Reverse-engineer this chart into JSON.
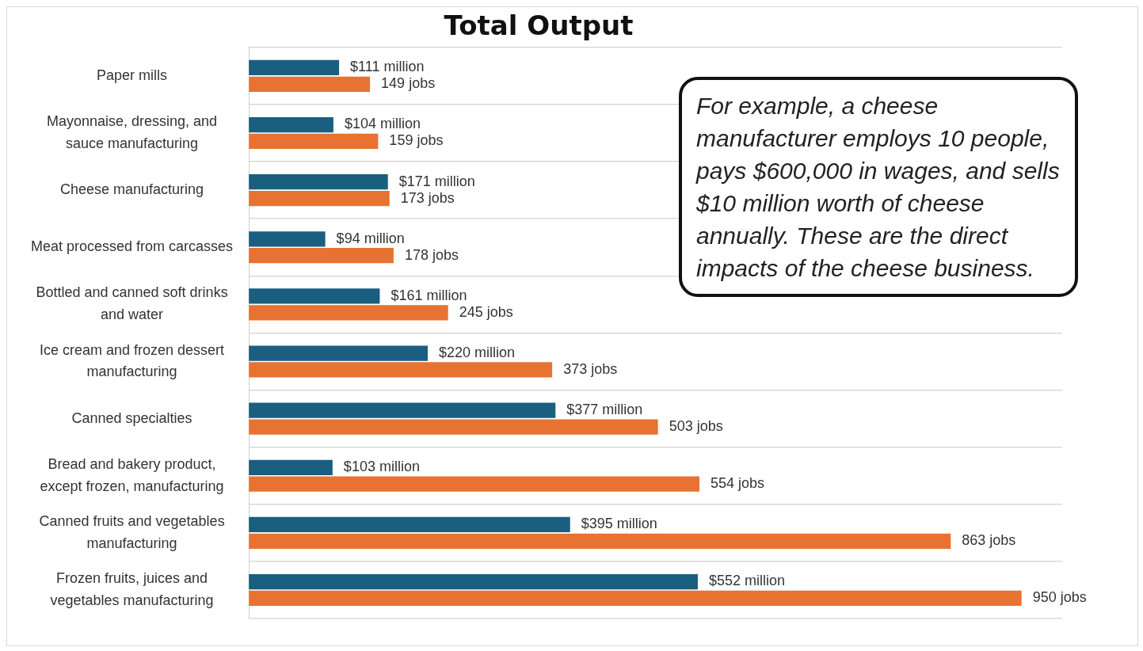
{
  "chart_data": {
    "type": "bar",
    "orientation": "horizontal",
    "title": "Total Output",
    "categories": [
      "Paper mills",
      "Mayonnaise, dressing, and sauce manufacturing",
      "Cheese manufacturing",
      "Meat processed from carcasses",
      "Bottled and canned soft drinks and water",
      "Ice cream and frozen dessert manufacturing",
      "Canned specialties",
      "Bread and bakery product, except frozen, manufacturing",
      "Canned fruits and vegetables manufacturing",
      "Frozen fruits, juices and vegetables manufacturing"
    ],
    "series": [
      {
        "color": "#1a5e80",
        "values": [
          111,
          104,
          171,
          94,
          161,
          220,
          377,
          103,
          395,
          552
        ],
        "value_labels": [
          "$111 million",
          "$104 million",
          "$171 million",
          "$94 million",
          "$161 million",
          "$220 million",
          "$377 million",
          "$103 million",
          "$395 million",
          "$552 million"
        ]
      },
      {
        "color": "#e87232",
        "values": [
          149,
          159,
          173,
          178,
          245,
          373,
          503,
          554,
          863,
          950
        ],
        "value_labels": [
          "149 jobs",
          "159 jobs",
          "173 jobs",
          "178 jobs",
          "245 jobs",
          "373 jobs",
          "503 jobs",
          "554 jobs",
          "863 jobs",
          "950 jobs"
        ]
      }
    ],
    "tick_labels": "y",
    "grid": "y",
    "legend": false,
    "annotations": [
      "For example, a cheese manufacturer employs 10 people, pays $600,000 in wages, and sells $10 million worth of cheese annually. These are the direct impacts of the cheese business."
    ]
  }
}
